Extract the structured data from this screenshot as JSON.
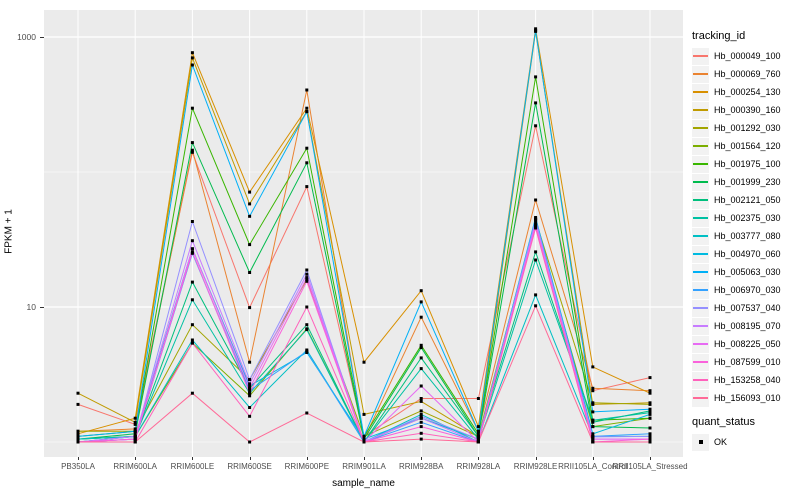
{
  "ui": {
    "y_axis_title": "FPKM + 1",
    "x_axis_title": "sample_name",
    "legend_tracking_title": "tracking_id",
    "legend_quant_title": "quant_status",
    "legend_quant_ok": "OK"
  },
  "colors": {
    "panel_bg": "#EBEBEB",
    "grid": "#FFFFFF",
    "tick_text": "#4D4D4D",
    "point": "#000000",
    "legend_key_bg": "#F2F2F2"
  },
  "chart_data": {
    "type": "line",
    "x_type": "categorical",
    "y_scale": "log10",
    "ylabel": "FPKM + 1",
    "xlabel": "sample_name",
    "ylim": [
      1,
      1300
    ],
    "y_axis_ticks": [
      1000,
      10
    ],
    "y_minor_gridlines": [
      100,
      1
    ],
    "grid": "on",
    "legend_position": "right",
    "legend_title": "tracking_id",
    "quant_status_legend": {
      "title": "quant_status",
      "items": [
        "OK"
      ]
    },
    "point_shape": "small black square",
    "categories": [
      "PB350LA",
      "RRIM600LA",
      "RRIM600LE",
      "RRIM600SE",
      "RRIM600PE",
      "RRIM901LA",
      "RRIM928BA",
      "RRIM928LA",
      "RRIM928LE",
      "RRII105LA_Control",
      "RRII105LA_Stressed"
    ],
    "series": [
      {
        "name": "Hb_000049_100",
        "color": "#F8766D",
        "values": [
          1.9,
          1.35,
          140,
          9.9,
          78,
          1.1,
          2.1,
          2.1,
          220,
          2.4,
          3.0
        ]
      },
      {
        "name": "Hb_000069_760",
        "color": "#EA8331",
        "values": [
          1.2,
          1.25,
          145,
          3.9,
          405,
          1.05,
          8.4,
          1.2,
          62,
          2.5,
          2.4
        ]
      },
      {
        "name": "Hb_000254_130",
        "color": "#D89000",
        "values": [
          1.15,
          1.5,
          765,
          71,
          297,
          3.9,
          13.2,
          1.3,
          1150,
          3.6,
          2.3
        ]
      },
      {
        "name": "Hb_000390_160",
        "color": "#C09B00",
        "values": [
          2.3,
          1.4,
          700,
          58,
          280,
          1.6,
          2.0,
          1.1,
          1100,
          1.9,
          1.95
        ]
      },
      {
        "name": "Hb_001292_030",
        "color": "#A3A500",
        "values": [
          1.2,
          1.2,
          7.4,
          2.9,
          16,
          1.1,
          1.7,
          1.1,
          44,
          1.95,
          1.9
        ]
      },
      {
        "name": "Hb_001564_120",
        "color": "#7CAE00",
        "values": [
          1.05,
          1.1,
          5.4,
          2.2,
          6.9,
          1.0,
          1.5,
          1.05,
          40,
          1.3,
          1.5
        ]
      },
      {
        "name": "Hb_001975_100",
        "color": "#39B600",
        "values": [
          1.1,
          1.2,
          297,
          29,
          150,
          1.1,
          5.2,
          1.15,
          506,
          1.45,
          1.5
        ]
      },
      {
        "name": "Hb_001999_230",
        "color": "#00BB4E",
        "values": [
          1.05,
          1.15,
          165,
          18,
          117,
          1.05,
          5.0,
          1.1,
          325,
          1.3,
          1.27
        ]
      },
      {
        "name": "Hb_002121_050",
        "color": "#00BF7D",
        "values": [
          1.05,
          1.1,
          15.3,
          2.5,
          7.4,
          1.0,
          4.2,
          1.1,
          25.6,
          1.4,
          1.7
        ]
      },
      {
        "name": "Hb_002375_030",
        "color": "#00C1A3",
        "values": [
          1.0,
          1.1,
          11.3,
          2.3,
          6.8,
          1.0,
          3.5,
          1.05,
          22.3,
          1.45,
          1.65
        ]
      },
      {
        "name": "Hb_003777_080",
        "color": "#00BFC4",
        "values": [
          1.05,
          1.1,
          5.7,
          1.8,
          4.8,
          1.0,
          1.6,
          1.0,
          12.3,
          1.1,
          1.1
        ]
      },
      {
        "name": "Hb_004970_060",
        "color": "#00BAE0",
        "values": [
          1.0,
          1.1,
          27,
          2.6,
          4.6,
          1.05,
          1.5,
          1.05,
          46,
          1.15,
          1.6
        ]
      },
      {
        "name": "Hb_005063_030",
        "color": "#00B0F6",
        "values": [
          1.1,
          1.2,
          620,
          47,
          280,
          1.1,
          10.9,
          1.2,
          1120,
          1.67,
          1.75
        ]
      },
      {
        "name": "Hb_006970_030",
        "color": "#35A2FF",
        "values": [
          1.0,
          1.05,
          25,
          2.4,
          4.7,
          1.0,
          1.4,
          1.0,
          45,
          1.1,
          1.15
        ]
      },
      {
        "name": "Hb_007537_040",
        "color": "#9590FF",
        "values": [
          1.0,
          1.05,
          43,
          2.9,
          18.8,
          1.0,
          1.55,
          1.05,
          44,
          1.09,
          1.1
        ]
      },
      {
        "name": "Hb_008195_070",
        "color": "#C77CFF",
        "values": [
          1.0,
          1.1,
          31,
          2.7,
          17.5,
          1.0,
          1.5,
          1.0,
          42,
          1.05,
          1.05
        ]
      },
      {
        "name": "Hb_008225_050",
        "color": "#E76BF3",
        "values": [
          1.0,
          1.05,
          27,
          2.5,
          16.5,
          1.0,
          2.6,
          1.0,
          41,
          1.05,
          1.05
        ]
      },
      {
        "name": "Hb_087599_010",
        "color": "#FA62DB",
        "values": [
          1.0,
          1.05,
          25.5,
          2.3,
          15.5,
          1.0,
          1.3,
          1.0,
          39,
          1.0,
          1.05
        ]
      },
      {
        "name": "Hb_153258_040",
        "color": "#FF62BC",
        "values": [
          1.0,
          1.0,
          5.4,
          1.55,
          10.0,
          1.0,
          1.16,
          1.0,
          38.5,
          1.0,
          1.0
        ]
      },
      {
        "name": "Hb_156093_010",
        "color": "#FF6A98",
        "values": [
          1.0,
          1.0,
          2.3,
          1.0,
          1.64,
          1.0,
          1.05,
          1.0,
          10.2,
          1.0,
          1.0
        ]
      }
    ]
  }
}
